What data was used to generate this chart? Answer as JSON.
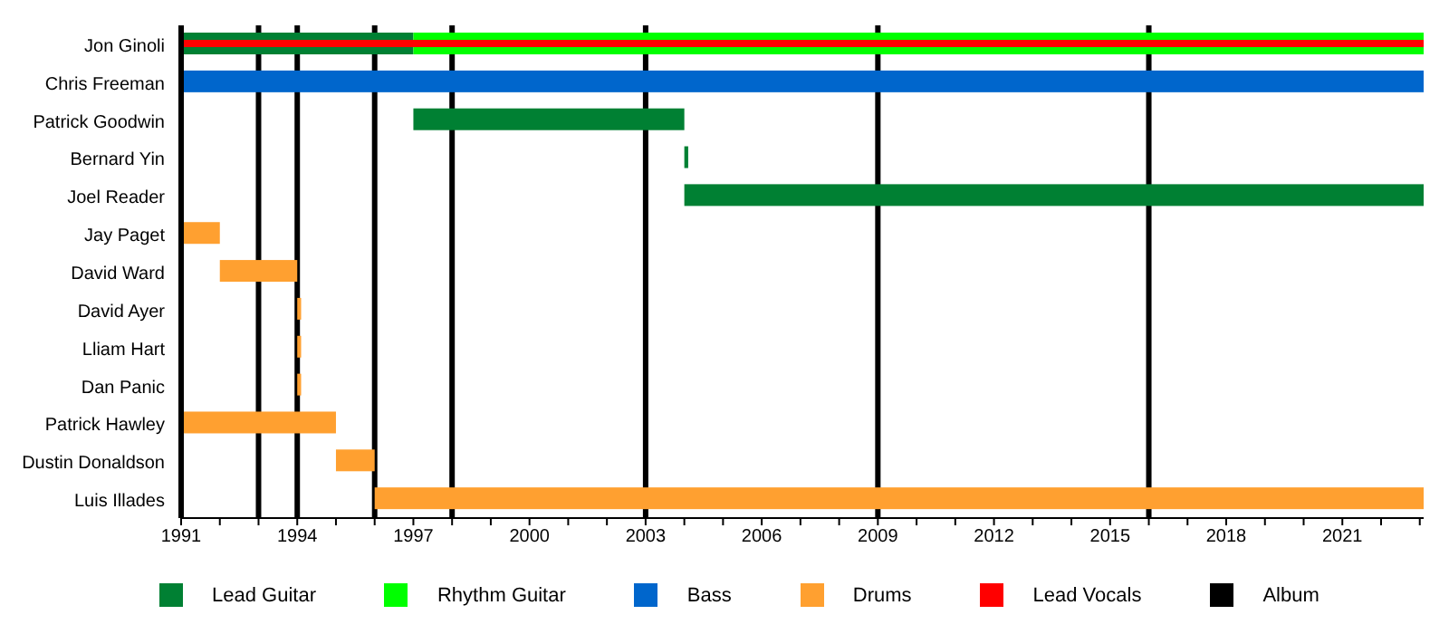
{
  "chart_data": {
    "type": "bar",
    "orientation": "horizontal",
    "categories": [
      "Jon Ginoli",
      "Chris Freeman",
      "Patrick Goodwin",
      "Bernard Yin",
      "Joel Reader",
      "Jay Paget",
      "David Ward",
      "David Ayer",
      "Lliam Hart",
      "Dan Panic",
      "Patrick Hawley",
      "Dustin Donaldson",
      "Luis Illades"
    ],
    "series": [
      {
        "name": "Lead Guitar",
        "color": "#008033",
        "values": [
          6,
          null,
          7,
          0.1,
          19.1,
          null,
          null,
          null,
          null,
          null,
          null,
          null,
          null
        ],
        "base": [
          1991,
          null,
          1997,
          2004,
          2004,
          null,
          null,
          null,
          null,
          null,
          null,
          null,
          null
        ]
      },
      {
        "name": "Rhythm Guitar",
        "color": "#00ff00",
        "values": [
          26.1,
          null,
          null,
          null,
          null,
          null,
          null,
          null,
          null,
          null,
          null,
          null,
          null
        ],
        "base": [
          1997,
          null,
          null,
          null,
          null,
          null,
          null,
          null,
          null,
          null,
          null,
          null,
          null
        ]
      },
      {
        "name": "Bass",
        "color": "#0066cc",
        "values": [
          null,
          32.1,
          null,
          null,
          null,
          null,
          null,
          null,
          null,
          null,
          null,
          null,
          null
        ],
        "base": [
          null,
          1991,
          null,
          null,
          null,
          null,
          null,
          null,
          null,
          null,
          null,
          null,
          null
        ]
      },
      {
        "name": "Drums",
        "color": "#ffa030",
        "values": [
          null,
          null,
          null,
          null,
          null,
          1,
          2,
          0.1,
          0.1,
          0.1,
          4,
          1,
          27.1
        ],
        "base": [
          null,
          null,
          null,
          null,
          null,
          1991,
          1992,
          1994,
          1994,
          1994,
          1991,
          1995,
          1996
        ]
      },
      {
        "name": "Lead Vocals",
        "color": "#ff0000",
        "values": [
          32.1,
          null,
          null,
          null,
          null,
          null,
          null,
          null,
          null,
          null,
          null,
          null,
          null
        ],
        "base": [
          1991,
          null,
          null,
          null,
          null,
          null,
          null,
          null,
          null,
          null,
          null,
          null,
          null
        ]
      }
    ],
    "ref_lines": [
      {
        "axis": "x",
        "value": 1993,
        "label": "Album",
        "color": "#000000"
      },
      {
        "axis": "x",
        "value": 1994,
        "color": "#000000"
      },
      {
        "axis": "x",
        "value": 1996,
        "color": "#000000"
      },
      {
        "axis": "x",
        "value": 1998,
        "color": "#000000"
      },
      {
        "axis": "x",
        "value": 2003,
        "color": "#000000"
      },
      {
        "axis": "x",
        "value": 2009,
        "color": "#000000"
      },
      {
        "axis": "x",
        "value": 2016,
        "color": "#000000"
      }
    ],
    "xlim": [
      1991,
      2023.1
    ],
    "xticks": [
      1991,
      {
        "value": 1992,
        "label": null
      },
      {
        "value": 1993,
        "label": null
      },
      1994,
      {
        "value": 1995,
        "label": null
      },
      {
        "value": 1996,
        "label": null
      },
      1997,
      {
        "value": 1998,
        "label": null
      },
      {
        "value": 1999,
        "label": null
      },
      2000,
      {
        "value": 2001,
        "label": null
      },
      {
        "value": 2002,
        "label": null
      },
      2003,
      {
        "value": 2004,
        "label": null
      },
      {
        "value": 2005,
        "label": null
      },
      2006,
      {
        "value": 2007,
        "label": null
      },
      {
        "value": 2008,
        "label": null
      },
      2009,
      {
        "value": 2010,
        "label": null
      },
      {
        "value": 2011,
        "label": null
      },
      2012,
      {
        "value": 2013,
        "label": null
      },
      {
        "value": 2014,
        "label": null
      },
      2015,
      {
        "value": 2016,
        "label": null
      },
      {
        "value": 2017,
        "label": null
      },
      2018,
      {
        "value": 2019,
        "label": null
      },
      {
        "value": 2020,
        "label": null
      },
      2021,
      {
        "value": 2022,
        "label": null
      },
      {
        "value": 2023,
        "label": null
      }
    ],
    "grid": false,
    "legend": "bottom"
  }
}
